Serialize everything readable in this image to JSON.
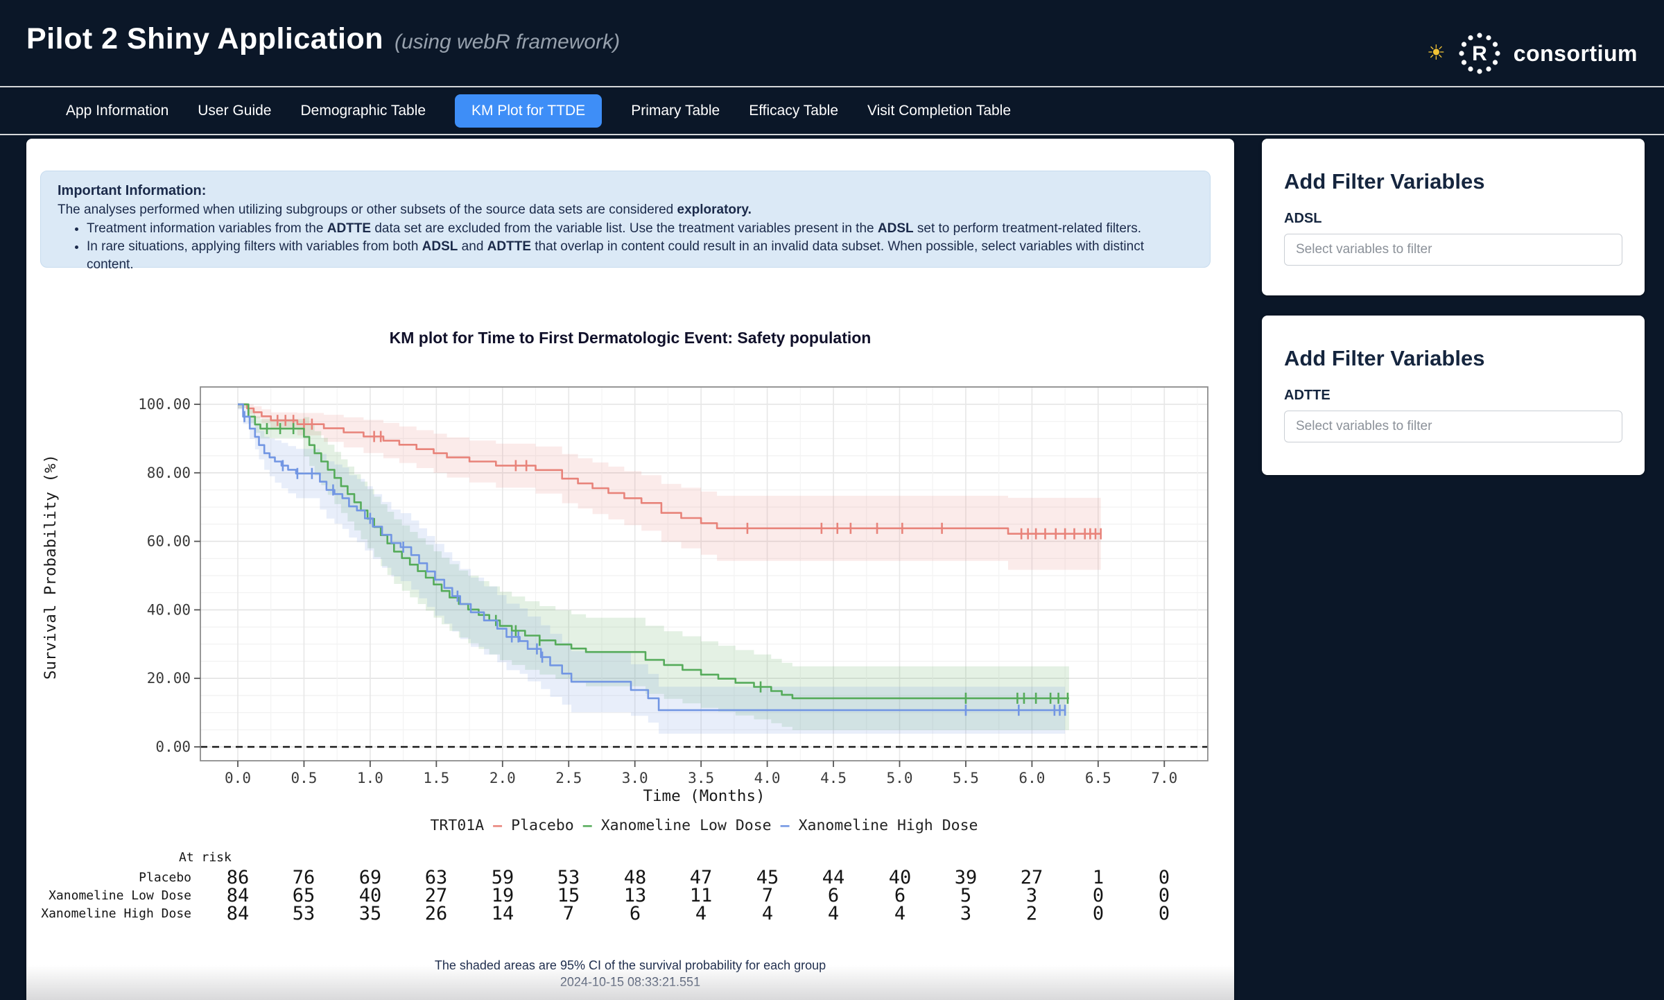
{
  "header": {
    "title": "Pilot 2 Shiny Application",
    "subtitle": "(using webR framework)",
    "sun_glyph": "☀",
    "logo_r": "R",
    "logo_text": "consortium"
  },
  "nav": {
    "tabs": [
      {
        "label": "App Information",
        "active": false
      },
      {
        "label": "User Guide",
        "active": false
      },
      {
        "label": "Demographic Table",
        "active": false
      },
      {
        "label": "KM Plot for TTDE",
        "active": true
      },
      {
        "label": "Primary Table",
        "active": false
      },
      {
        "label": "Efficacy Table",
        "active": false
      },
      {
        "label": "Visit Completion Table",
        "active": false
      }
    ]
  },
  "info_box": {
    "title": "Important Information:",
    "intro": [
      {
        "text": "The analyses performed when utilizing subgroups or other subsets of the source data sets are considered "
      },
      {
        "text": "exploratory.",
        "bold": true
      }
    ],
    "bullets": [
      [
        {
          "text": "Treatment information variables from the "
        },
        {
          "text": "ADTTE",
          "bold": true
        },
        {
          "text": " data set are excluded from the variable list. Use the treatment variables present in the "
        },
        {
          "text": "ADSL",
          "bold": true
        },
        {
          "text": " set to perform treatment-related filters."
        }
      ],
      [
        {
          "text": "In rare situations, applying filters with variables from both "
        },
        {
          "text": "ADSL",
          "bold": true
        },
        {
          "text": " and "
        },
        {
          "text": "ADTTE",
          "bold": true
        },
        {
          "text": " that overlap in content could result in an invalid data subset. When possible, select variables with distinct content."
        }
      ]
    ]
  },
  "filters": [
    {
      "heading": "Add Filter Variables",
      "dataset": "ADSL",
      "placeholder": "Select variables to filter"
    },
    {
      "heading": "Add Filter Variables",
      "dataset": "ADTTE",
      "placeholder": "Select variables to filter"
    }
  ],
  "colors": {
    "page_bg": "#0b1728",
    "active_tab": "#3e8ef7",
    "info_bg": "#dbe9f6",
    "placebo": "#e8837a",
    "low_dose": "#55ab5a",
    "high_dose": "#7296e3"
  },
  "chart_data": {
    "type": "line",
    "subtype": "kaplan-meier-step",
    "title": "KM plot for Time to First Dermatologic Event: Safety population",
    "xlabel": "Time (Months)",
    "ylabel": "Survival Probability (%)",
    "xlim": [
      -0.3,
      7.3
    ],
    "ylim": [
      0,
      100
    ],
    "grid": true,
    "legend_position": "bottom",
    "zero_reference_dashed_line": true,
    "xticks": {
      "values": [
        0,
        0.5,
        1,
        1.5,
        2,
        2.5,
        3,
        3.5,
        4,
        4.5,
        5,
        5.5,
        6,
        6.5,
        7
      ],
      "labels": [
        "0.0",
        "0.5",
        "1.0",
        "1.5",
        "2.0",
        "2.5",
        "3.0",
        "3.5",
        "4.0",
        "4.5",
        "5.0",
        "5.5",
        "6.0",
        "6.5",
        "7.0"
      ]
    },
    "yticks": {
      "values": [
        0,
        20,
        40,
        60,
        80,
        100
      ],
      "labels": [
        "0.00",
        "20.00",
        "40.00",
        "60.00",
        "80.00",
        "100.00"
      ]
    },
    "legend_title": "TRT01A",
    "series": [
      {
        "name": "Placebo",
        "color": "#e8837a",
        "fill": "rgba(232,131,122,0.16)",
        "end": 6.52,
        "points": [
          [
            0,
            100
          ],
          [
            0.07,
            98.8
          ],
          [
            0.12,
            97.7
          ],
          [
            0.18,
            96.5
          ],
          [
            0.25,
            95.3
          ],
          [
            0.45,
            94.2
          ],
          [
            0.65,
            93.0
          ],
          [
            0.8,
            91.8
          ],
          [
            0.95,
            90.6
          ],
          [
            1.1,
            89.4
          ],
          [
            1.22,
            88.2
          ],
          [
            1.35,
            86.9
          ],
          [
            1.48,
            85.7
          ],
          [
            1.58,
            84.5
          ],
          [
            1.75,
            83.3
          ],
          [
            1.95,
            82.1
          ],
          [
            2.25,
            80.8
          ],
          [
            2.45,
            78.3
          ],
          [
            2.57,
            76.9
          ],
          [
            2.68,
            75.5
          ],
          [
            2.8,
            74.1
          ],
          [
            2.92,
            72.6
          ],
          [
            3.05,
            71.2
          ],
          [
            3.2,
            68.3
          ],
          [
            3.35,
            66.8
          ],
          [
            3.5,
            65.3
          ],
          [
            3.62,
            63.8
          ],
          [
            5.82,
            62.2
          ]
        ],
        "censors": [
          0.3,
          0.36,
          0.42,
          0.5,
          0.56,
          1.03,
          1.08,
          2.1,
          2.18,
          3.85,
          4.41,
          4.53,
          4.63,
          4.83,
          5.02,
          5.32,
          5.92,
          5.97,
          6.03,
          6.1,
          6.18,
          6.25,
          6.32,
          6.4,
          6.44,
          6.48,
          6.52
        ],
        "ci_halfwidth": [
          [
            0,
            1.2
          ],
          [
            0.5,
            3.5
          ],
          [
            1,
            5
          ],
          [
            2,
            6.5
          ],
          [
            3,
            8
          ],
          [
            3.62,
            9.5
          ],
          [
            5.82,
            10.5
          ],
          [
            6.52,
            11
          ]
        ]
      },
      {
        "name": "Xanomeline Low Dose",
        "color": "#55ab5a",
        "fill": "rgba(85,171,90,0.16)",
        "end": 6.28,
        "points": [
          [
            0,
            100
          ],
          [
            0.08,
            96.4
          ],
          [
            0.13,
            94.1
          ],
          [
            0.17,
            92.9
          ],
          [
            0.5,
            90.5
          ],
          [
            0.54,
            88.1
          ],
          [
            0.58,
            85.7
          ],
          [
            0.63,
            83.3
          ],
          [
            0.68,
            80.9
          ],
          [
            0.73,
            78.5
          ],
          [
            0.78,
            76.1
          ],
          [
            0.83,
            73.8
          ],
          [
            0.88,
            71.4
          ],
          [
            0.93,
            69.0
          ],
          [
            0.98,
            66.6
          ],
          [
            1.03,
            64.2
          ],
          [
            1.08,
            61.8
          ],
          [
            1.13,
            59.4
          ],
          [
            1.18,
            57.0
          ],
          [
            1.24,
            55.1
          ],
          [
            1.3,
            53.2
          ],
          [
            1.36,
            51.3
          ],
          [
            1.42,
            49.4
          ],
          [
            1.48,
            47.4
          ],
          [
            1.54,
            45.5
          ],
          [
            1.6,
            43.6
          ],
          [
            1.67,
            41.7
          ],
          [
            1.74,
            40.1
          ],
          [
            1.82,
            38.5
          ],
          [
            1.9,
            36.9
          ],
          [
            1.98,
            35.3
          ],
          [
            2.07,
            33.9
          ],
          [
            2.17,
            32.5
          ],
          [
            2.28,
            31.1
          ],
          [
            2.4,
            29.9
          ],
          [
            2.52,
            28.7
          ],
          [
            2.63,
            27.7
          ],
          [
            3.08,
            25.4
          ],
          [
            3.22,
            23.9
          ],
          [
            3.36,
            22.5
          ],
          [
            3.5,
            21.1
          ],
          [
            3.63,
            19.9
          ],
          [
            3.76,
            18.7
          ],
          [
            3.9,
            17.5
          ],
          [
            4.03,
            16.3
          ],
          [
            4.11,
            15.2
          ],
          [
            4.19,
            14.2
          ]
        ],
        "censors": [
          0.22,
          0.32,
          0.42,
          1.95,
          2.1,
          2.28,
          3.95,
          5.5,
          5.89,
          5.94,
          6.03,
          6.14,
          6.2,
          6.27
        ],
        "ci_halfwidth": [
          [
            0,
            1.2
          ],
          [
            0.3,
            4
          ],
          [
            0.7,
            7.5
          ],
          [
            1.2,
            9.5
          ],
          [
            2,
            10
          ],
          [
            3,
            10
          ],
          [
            4.2,
            9.3
          ],
          [
            6.28,
            9.3
          ]
        ]
      },
      {
        "name": "Xanomeline High Dose",
        "color": "#7296e3",
        "fill": "rgba(114,150,227,0.16)",
        "end": 6.25,
        "points": [
          [
            0,
            100
          ],
          [
            0.04,
            96.4
          ],
          [
            0.09,
            92.9
          ],
          [
            0.13,
            90.5
          ],
          [
            0.16,
            88.1
          ],
          [
            0.2,
            85.7
          ],
          [
            0.24,
            84.5
          ],
          [
            0.28,
            83.3
          ],
          [
            0.33,
            82.1
          ],
          [
            0.38,
            80.9
          ],
          [
            0.44,
            79.8
          ],
          [
            0.62,
            77.4
          ],
          [
            0.67,
            75.0
          ],
          [
            0.73,
            73.8
          ],
          [
            0.79,
            72.6
          ],
          [
            0.84,
            70.2
          ],
          [
            0.9,
            69.0
          ],
          [
            0.96,
            66.7
          ],
          [
            1.02,
            64.3
          ],
          [
            1.09,
            61.9
          ],
          [
            1.16,
            59.5
          ],
          [
            1.23,
            58.3
          ],
          [
            1.31,
            56.0
          ],
          [
            1.37,
            53.6
          ],
          [
            1.43,
            51.2
          ],
          [
            1.49,
            48.8
          ],
          [
            1.56,
            46.4
          ],
          [
            1.62,
            44.0
          ],
          [
            1.68,
            41.7
          ],
          [
            1.76,
            39.3
          ],
          [
            1.86,
            36.9
          ],
          [
            1.96,
            34.5
          ],
          [
            2.03,
            32.1
          ],
          [
            2.13,
            30.9
          ],
          [
            2.19,
            28.6
          ],
          [
            2.29,
            26.2
          ],
          [
            2.36,
            23.8
          ],
          [
            2.45,
            21.4
          ],
          [
            2.52,
            19.0
          ],
          [
            2.97,
            16.6
          ],
          [
            3.1,
            14.2
          ],
          [
            3.18,
            10.7
          ]
        ],
        "censors": [
          0.05,
          0.34,
          0.45,
          0.56,
          0.72,
          1.0,
          1.25,
          1.66,
          2.07,
          2.12,
          2.26,
          2.3,
          5.5,
          5.9,
          6.17,
          6.21,
          6.25
        ],
        "ci_halfwidth": [
          [
            0,
            1.5
          ],
          [
            0.3,
            6.5
          ],
          [
            0.8,
            9
          ],
          [
            1.5,
            10.5
          ],
          [
            2.5,
            9
          ],
          [
            3.2,
            6.8
          ],
          [
            6.25,
            6.8
          ]
        ]
      }
    ],
    "at_risk": {
      "label": "At risk",
      "times": [
        0,
        0.5,
        1,
        1.5,
        2,
        2.5,
        3,
        3.5,
        4,
        4.5,
        5,
        5.5,
        6,
        6.5,
        7
      ],
      "rows": [
        {
          "name": "Placebo",
          "values": [
            86,
            76,
            69,
            63,
            59,
            53,
            48,
            47,
            45,
            44,
            40,
            39,
            27,
            1,
            0
          ]
        },
        {
          "name": "Xanomeline Low Dose",
          "values": [
            84,
            65,
            40,
            27,
            19,
            15,
            13,
            11,
            7,
            6,
            6,
            5,
            3,
            0,
            0
          ]
        },
        {
          "name": "Xanomeline High Dose",
          "values": [
            84,
            53,
            35,
            26,
            14,
            7,
            6,
            4,
            4,
            4,
            4,
            3,
            2,
            0,
            0
          ]
        }
      ]
    },
    "footnote": "The shaded areas are 95% CI of the survival probability for each group",
    "timestamp": "2024-10-15 08:33:21.551"
  }
}
